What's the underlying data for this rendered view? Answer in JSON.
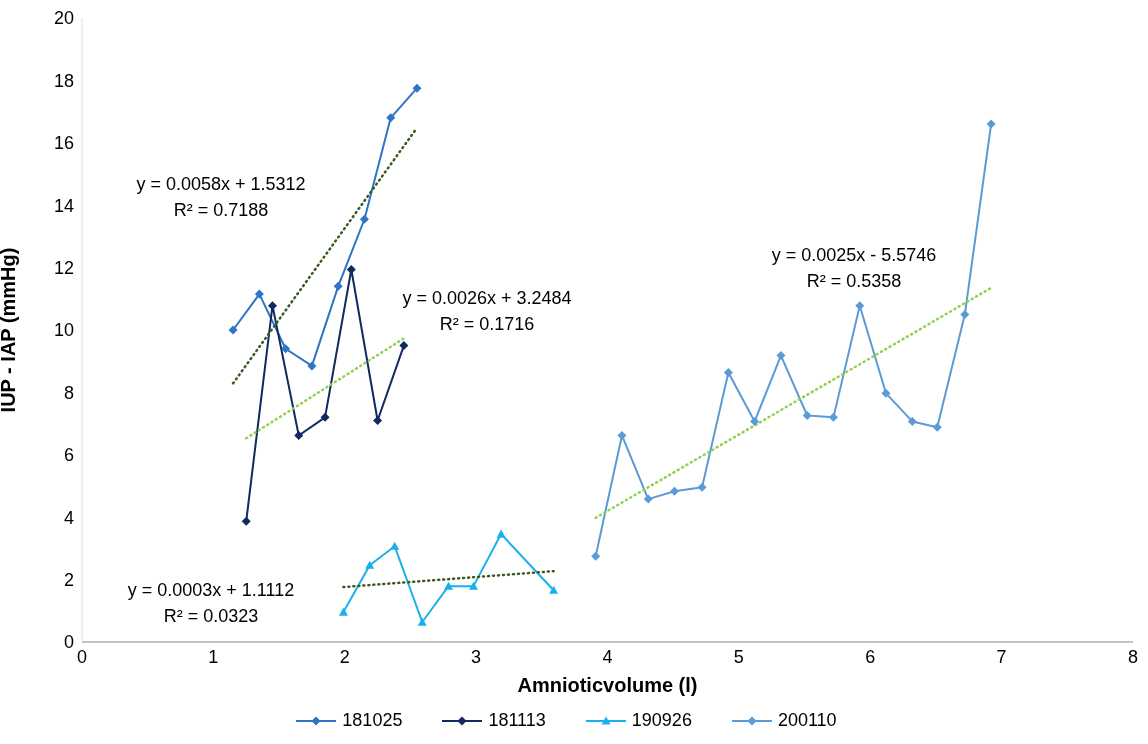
{
  "chart_data": {
    "type": "line",
    "xlabel": "Amnioticvolume (l)",
    "ylabel": "IUP - IAP (mmHg)",
    "xlim": [
      0,
      8
    ],
    "xticks": [
      0,
      1,
      2,
      3,
      4,
      5,
      6,
      7,
      8
    ],
    "ylim": [
      0,
      20
    ],
    "yticks": [
      0,
      2,
      4,
      6,
      8,
      10,
      12,
      14,
      16,
      18,
      20
    ],
    "grid": false,
    "legend": "bottom",
    "line_style": "solid",
    "series": [
      {
        "name": "181025",
        "color": "#2e75c6",
        "marker": "diamond",
        "x": [
          1.15,
          1.35,
          1.55,
          1.75,
          1.95,
          2.15,
          2.35,
          2.55
        ],
        "values": [
          10.0,
          11.15,
          9.4,
          8.85,
          11.4,
          13.55,
          16.8,
          17.75
        ]
      },
      {
        "name": "181113",
        "color": "#0e2a5e",
        "marker": "diamond",
        "x": [
          1.25,
          1.45,
          1.65,
          1.85,
          2.05,
          2.25,
          2.45
        ],
        "values": [
          3.87,
          10.78,
          6.62,
          7.2,
          11.94,
          7.1,
          9.5
        ]
      },
      {
        "name": "190926",
        "color": "#1ab0ec",
        "marker": "triangle",
        "x": [
          1.99,
          2.19,
          2.38,
          2.59,
          2.79,
          2.98,
          3.19,
          3.59
        ],
        "values": [
          0.96,
          2.46,
          3.07,
          0.64,
          1.79,
          1.79,
          3.46,
          1.66
        ]
      },
      {
        "name": "200110",
        "color": "#5b9bd5",
        "marker": "diamond",
        "x": [
          3.91,
          4.11,
          4.31,
          4.51,
          4.72,
          4.92,
          5.12,
          5.32,
          5.52,
          5.72,
          5.92,
          6.12,
          6.32,
          6.51,
          6.72,
          6.92
        ],
        "values": [
          2.75,
          6.62,
          4.58,
          4.83,
          4.96,
          8.64,
          7.07,
          9.18,
          7.26,
          7.2,
          10.78,
          7.97,
          7.07,
          6.88,
          10.5,
          16.6
        ]
      },
      {
        "color": "#3a5a20",
        "marker": "none",
        "line_style": "dotted",
        "x": [
          1.15,
          2.55
        ],
        "values": [
          8.29,
          16.48
        ]
      },
      {
        "color": "#92d050",
        "marker": "none",
        "line_style": "dotted",
        "x": [
          1.25,
          2.45
        ],
        "values": [
          6.53,
          9.73
        ]
      },
      {
        "color": "#3a5a20",
        "marker": "none",
        "line_style": "dotted",
        "x": [
          1.99,
          3.59
        ],
        "values": [
          1.76,
          2.27
        ]
      },
      {
        "color": "#92d050",
        "marker": "none",
        "line_style": "dotted",
        "x": [
          3.91,
          6.92
        ],
        "values": [
          3.98,
          11.35
        ]
      }
    ],
    "annotations": [
      "y = 0.0058x + 1.5312\nR² = 0.7188",
      "y = 0.0026x + 3.2484\nR² = 0.1716",
      "y = 0.0003x + 1.1112\nR² = 0.0323",
      "y = 0.0025x - 5.5746\nR² = 0.5358"
    ]
  }
}
